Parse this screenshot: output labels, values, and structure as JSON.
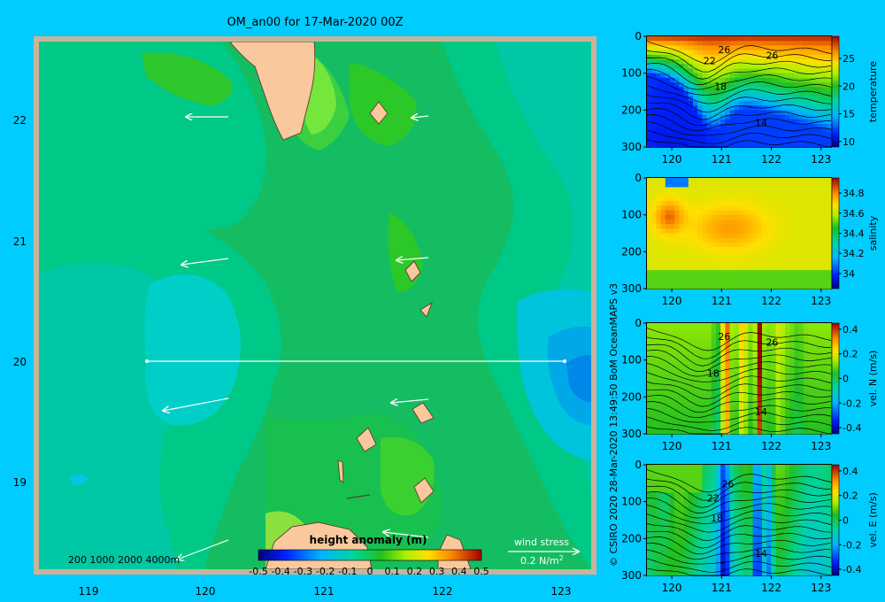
{
  "title": "OM_an00 for 17-Mar-2020 00Z",
  "credit": "© CSIRO 2020   28-Mar-2020 13:49:50 BoM OceanMAPS v3",
  "colors": {
    "page_bg": "#00ccff",
    "map_frame": "#c8b49a",
    "land": "#f9c89c",
    "land_edge": "#5a3f2f",
    "arrow": "#ffffff",
    "section_line": "#ffffff"
  },
  "map": {
    "xticks": [
      "119",
      "120",
      "121",
      "122",
      "123"
    ],
    "yticks": [
      "22",
      "21",
      "20",
      "19"
    ],
    "xlim": [
      118.5,
      123.5
    ],
    "ylim": [
      18.3,
      22.7
    ],
    "depth_legend": "200  1000  2000  4000m",
    "wind_stress_label": "wind stress",
    "wind_stress_scale": "0.2 N/m",
    "wind_stress_exp": "2"
  },
  "colorbar": {
    "title": "height anomaly (m)",
    "ticks": [
      "-0.5",
      "-0.4",
      "-0.3",
      "-0.2",
      "-0.1",
      "0",
      "0.1",
      "0.2",
      "0.3",
      "0.4",
      "0.5"
    ],
    "range": [
      -0.5,
      0.5
    ]
  },
  "sections": [
    {
      "var": "temperature",
      "xticks": [
        "120",
        "121",
        "122",
        "123"
      ],
      "yticks": [
        "0",
        "100",
        "200",
        "300"
      ],
      "cticks": [
        "25",
        "20",
        "15",
        "10"
      ],
      "crange": [
        9,
        29
      ],
      "contour_labels": [
        "26",
        "26",
        "22",
        "18",
        "14"
      ]
    },
    {
      "var": "salinity",
      "xticks": [
        "120",
        "121",
        "122",
        "123"
      ],
      "yticks": [
        "0",
        "100",
        "200",
        "300"
      ],
      "cticks": [
        "34.8",
        "34.6",
        "34.4",
        "34.2",
        "34"
      ],
      "crange": [
        33.85,
        34.95
      ]
    },
    {
      "var": "vel. N  (m/s)",
      "xticks": [
        "120",
        "121",
        "122",
        "123"
      ],
      "yticks": [
        "0",
        "100",
        "200",
        "300"
      ],
      "cticks": [
        "0.4",
        "0.2",
        "0",
        "-0.2",
        "-0.4"
      ],
      "crange": [
        -0.45,
        0.45
      ],
      "contour_labels": [
        "26",
        "26",
        "18",
        "14"
      ]
    },
    {
      "var": "vel. E  (m/s)",
      "xticks": [
        "120",
        "121",
        "122",
        "123"
      ],
      "yticks": [
        "0",
        "100",
        "200",
        "300"
      ],
      "cticks": [
        "0.4",
        "0.2",
        "0",
        "-0.2",
        "-0.4"
      ],
      "crange": [
        -0.45,
        0.45
      ],
      "contour_labels": [
        "26",
        "22",
        "18",
        "14"
      ]
    }
  ],
  "chart_data": [
    {
      "type": "heatmap",
      "title": "OM_an00 for 17-Mar-2020 00Z",
      "variable": "height anomaly (m)",
      "xlabel": "",
      "ylabel": "",
      "xlim": [
        118.5,
        123.5
      ],
      "ylim": [
        18.3,
        22.7
      ],
      "section_line": {
        "lon": [
          119.5,
          123.2
        ],
        "lat": [
          20.0,
          20.0
        ]
      },
      "wind_stress_vectors": [
        {
          "lon": 120.2,
          "lat": 22.03,
          "u": -0.12,
          "v": 0.0
        },
        {
          "lon": 121.9,
          "lat": 22.03,
          "u": -0.04,
          "v": 0.0
        },
        {
          "lon": 120.2,
          "lat": 20.85,
          "u": -0.14,
          "v": -0.02
        },
        {
          "lon": 121.9,
          "lat": 20.85,
          "u": -0.08,
          "v": 0.0
        },
        {
          "lon": 120.2,
          "lat": 19.67,
          "u": -0.18,
          "v": -0.04
        },
        {
          "lon": 121.9,
          "lat": 19.67,
          "u": -0.1,
          "v": 0.0
        },
        {
          "lon": 120.2,
          "lat": 18.5,
          "u": -0.14,
          "v": -0.05
        },
        {
          "lon": 121.9,
          "lat": 18.5,
          "u": -0.12,
          "v": 0.0
        }
      ]
    },
    {
      "type": "heatmap",
      "variable": "temperature",
      "xlim": [
        119.5,
        123.2
      ],
      "ylim": [
        300,
        0
      ],
      "range": [
        9,
        29
      ]
    },
    {
      "type": "heatmap",
      "variable": "salinity",
      "xlim": [
        119.5,
        123.2
      ],
      "ylim": [
        300,
        0
      ],
      "range": [
        33.85,
        34.95
      ]
    },
    {
      "type": "heatmap",
      "variable": "vel. N (m/s)",
      "xlim": [
        119.5,
        123.2
      ],
      "ylim": [
        300,
        0
      ],
      "range": [
        -0.45,
        0.45
      ]
    },
    {
      "type": "heatmap",
      "variable": "vel. E (m/s)",
      "xlim": [
        119.5,
        123.2
      ],
      "ylim": [
        300,
        0
      ],
      "range": [
        -0.45,
        0.45
      ]
    }
  ]
}
